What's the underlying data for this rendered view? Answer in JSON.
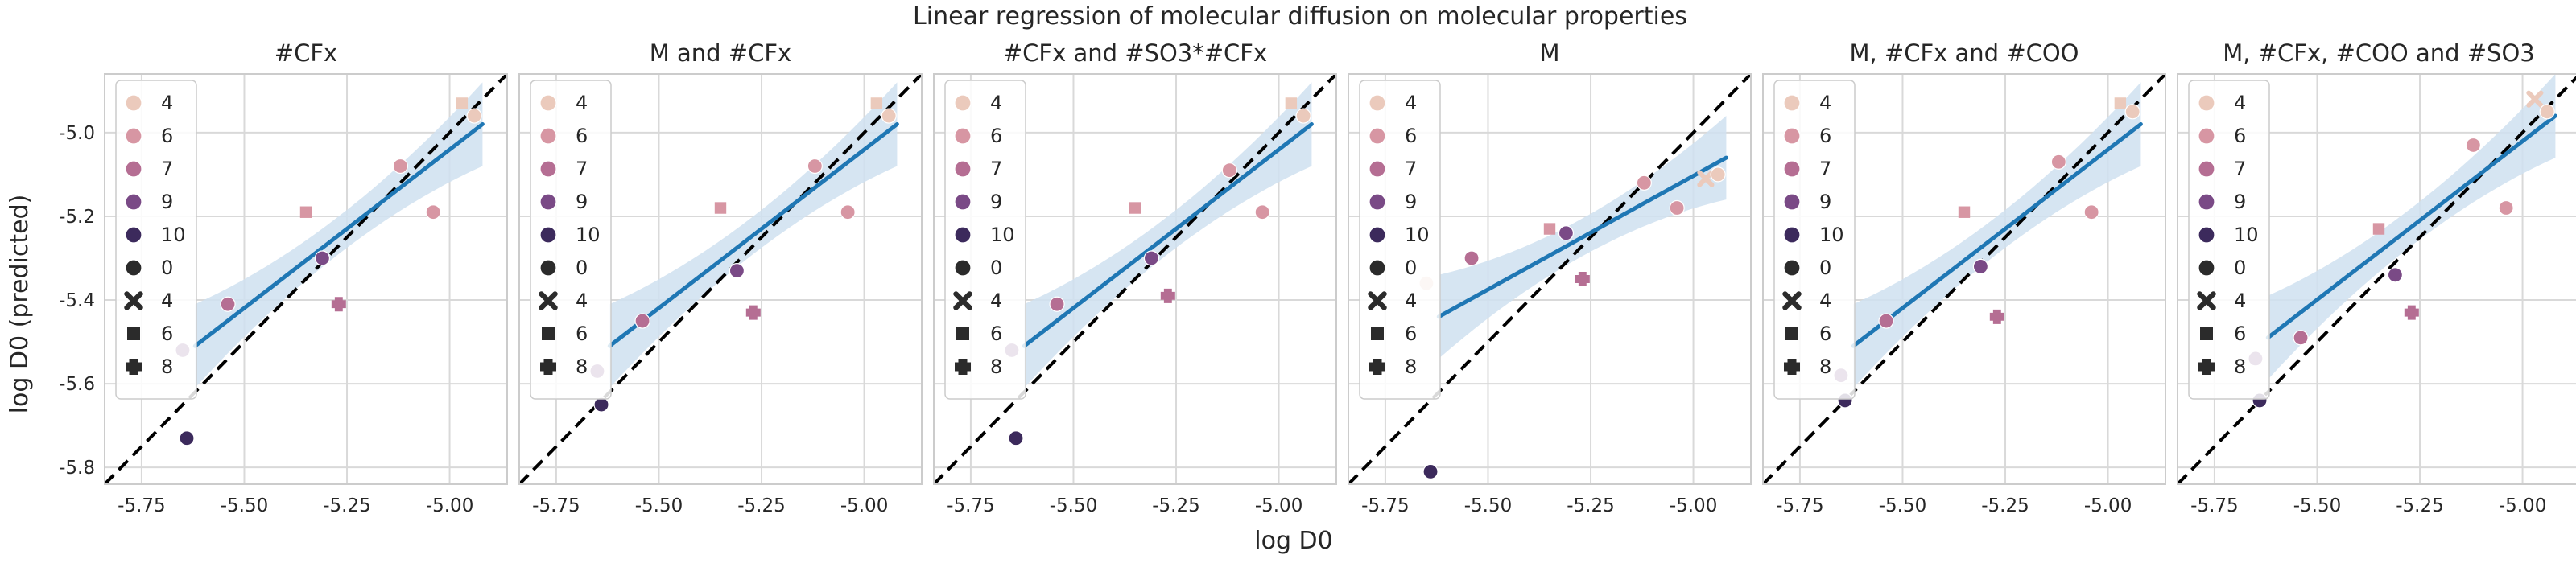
{
  "figure": {
    "title": "Linear regression of molecular diffusion on molecular properties",
    "xlabel": "log D0",
    "ylabel": "log D0 (predicted)"
  },
  "colors": {
    "hue": {
      "4": "#ebcabc",
      "6": "#d796a3",
      "7": "#b56e93",
      "9": "#7a4a86",
      "10": "#3c2a5c",
      "0": "#2b2b2b"
    },
    "regression": "#1f77b4",
    "ci_band": "#cfe0f0",
    "identity": "#000000",
    "grid": "#d9d9d9",
    "frame": "#cccccc"
  },
  "legend": {
    "hue_entries": [
      {
        "label": "4",
        "key": "4"
      },
      {
        "label": "6",
        "key": "6"
      },
      {
        "label": "7",
        "key": "7"
      },
      {
        "label": "9",
        "key": "9"
      },
      {
        "label": "10",
        "key": "10"
      }
    ],
    "style_entries": [
      {
        "label": "0",
        "marker": "circle"
      },
      {
        "label": "4",
        "marker": "x"
      },
      {
        "label": "6",
        "marker": "square"
      },
      {
        "label": "8",
        "marker": "plus"
      }
    ]
  },
  "chart_data": [
    {
      "type": "scatter",
      "title": "#CFx",
      "xlim": [
        -5.84,
        -4.86
      ],
      "ylim": [
        -5.84,
        -4.86
      ],
      "xticks": [
        "-5.75",
        "-5.50",
        "-5.25",
        "-5.00"
      ],
      "yticks": [
        "-5.0",
        "-5.2",
        "-5.4",
        "-5.6",
        "-5.8"
      ],
      "grid": true,
      "legend_position": "top-left",
      "regression": {
        "x": [
          -5.62,
          -4.92
        ],
        "y": [
          -5.51,
          -4.98
        ]
      },
      "points": [
        {
          "x": -5.64,
          "y": -5.73,
          "hue": "10",
          "marker": "circle"
        },
        {
          "x": -5.65,
          "y": -5.52,
          "hue": "9",
          "marker": "circle"
        },
        {
          "x": -5.54,
          "y": -5.41,
          "hue": "7",
          "marker": "circle"
        },
        {
          "x": -5.31,
          "y": -5.3,
          "hue": "9",
          "marker": "circle"
        },
        {
          "x": -5.35,
          "y": -5.19,
          "hue": "6",
          "marker": "square"
        },
        {
          "x": -5.27,
          "y": -5.41,
          "hue": "7",
          "marker": "plus"
        },
        {
          "x": -5.12,
          "y": -5.08,
          "hue": "6",
          "marker": "circle"
        },
        {
          "x": -5.04,
          "y": -5.19,
          "hue": "6",
          "marker": "circle"
        },
        {
          "x": -4.97,
          "y": -4.93,
          "hue": "4",
          "marker": "square"
        },
        {
          "x": -4.94,
          "y": -4.96,
          "hue": "4",
          "marker": "circle"
        }
      ]
    },
    {
      "type": "scatter",
      "title": "M and #CFx",
      "xlim": [
        -5.84,
        -4.86
      ],
      "ylim": [
        -5.84,
        -4.86
      ],
      "xticks": [
        "-5.75",
        "-5.50",
        "-5.25",
        "-5.00"
      ],
      "yticks": [
        "-5.0",
        "-5.2",
        "-5.4",
        "-5.6",
        "-5.8"
      ],
      "grid": true,
      "legend_position": "top-left",
      "regression": {
        "x": [
          -5.62,
          -4.92
        ],
        "y": [
          -5.51,
          -4.98
        ]
      },
      "points": [
        {
          "x": -5.64,
          "y": -5.65,
          "hue": "10",
          "marker": "circle"
        },
        {
          "x": -5.65,
          "y": -5.57,
          "hue": "9",
          "marker": "circle"
        },
        {
          "x": -5.54,
          "y": -5.45,
          "hue": "7",
          "marker": "circle"
        },
        {
          "x": -5.31,
          "y": -5.33,
          "hue": "9",
          "marker": "circle"
        },
        {
          "x": -5.35,
          "y": -5.18,
          "hue": "6",
          "marker": "square"
        },
        {
          "x": -5.27,
          "y": -5.43,
          "hue": "7",
          "marker": "plus"
        },
        {
          "x": -5.12,
          "y": -5.08,
          "hue": "6",
          "marker": "circle"
        },
        {
          "x": -5.04,
          "y": -5.19,
          "hue": "6",
          "marker": "circle"
        },
        {
          "x": -4.97,
          "y": -4.93,
          "hue": "4",
          "marker": "square"
        },
        {
          "x": -4.94,
          "y": -4.96,
          "hue": "4",
          "marker": "circle"
        }
      ]
    },
    {
      "type": "scatter",
      "title": "#CFx and #SO3*#CFx",
      "xlim": [
        -5.84,
        -4.86
      ],
      "ylim": [
        -5.84,
        -4.86
      ],
      "xticks": [
        "-5.75",
        "-5.50",
        "-5.25",
        "-5.00"
      ],
      "yticks": [
        "-5.0",
        "-5.2",
        "-5.4",
        "-5.6",
        "-5.8"
      ],
      "grid": true,
      "legend_position": "top-left",
      "regression": {
        "x": [
          -5.62,
          -4.92
        ],
        "y": [
          -5.51,
          -4.98
        ]
      },
      "points": [
        {
          "x": -5.64,
          "y": -5.73,
          "hue": "10",
          "marker": "circle"
        },
        {
          "x": -5.65,
          "y": -5.52,
          "hue": "9",
          "marker": "circle"
        },
        {
          "x": -5.54,
          "y": -5.41,
          "hue": "7",
          "marker": "circle"
        },
        {
          "x": -5.31,
          "y": -5.3,
          "hue": "9",
          "marker": "circle"
        },
        {
          "x": -5.35,
          "y": -5.18,
          "hue": "6",
          "marker": "square"
        },
        {
          "x": -5.27,
          "y": -5.39,
          "hue": "7",
          "marker": "plus"
        },
        {
          "x": -5.12,
          "y": -5.09,
          "hue": "6",
          "marker": "circle"
        },
        {
          "x": -5.04,
          "y": -5.19,
          "hue": "6",
          "marker": "circle"
        },
        {
          "x": -4.97,
          "y": -4.93,
          "hue": "4",
          "marker": "square"
        },
        {
          "x": -4.94,
          "y": -4.96,
          "hue": "4",
          "marker": "circle"
        }
      ]
    },
    {
      "type": "scatter",
      "title": "M",
      "xlim": [
        -5.84,
        -4.86
      ],
      "ylim": [
        -5.84,
        -4.86
      ],
      "xticks": [
        "-5.75",
        "-5.50",
        "-5.25",
        "-5.00"
      ],
      "yticks": [
        "-5.0",
        "-5.2",
        "-5.4",
        "-5.6",
        "-5.8"
      ],
      "grid": true,
      "legend_position": "top-left",
      "regression": {
        "x": [
          -5.62,
          -4.92
        ],
        "y": [
          -5.44,
          -5.06
        ]
      },
      "points": [
        {
          "x": -5.64,
          "y": -5.81,
          "hue": "10",
          "marker": "circle"
        },
        {
          "x": -5.65,
          "y": -5.36,
          "hue": "4",
          "marker": "circle"
        },
        {
          "x": -5.54,
          "y": -5.3,
          "hue": "7",
          "marker": "circle"
        },
        {
          "x": -5.31,
          "y": -5.24,
          "hue": "9",
          "marker": "circle"
        },
        {
          "x": -5.35,
          "y": -5.23,
          "hue": "6",
          "marker": "square"
        },
        {
          "x": -5.27,
          "y": -5.35,
          "hue": "7",
          "marker": "plus"
        },
        {
          "x": -5.12,
          "y": -5.12,
          "hue": "6",
          "marker": "circle"
        },
        {
          "x": -5.04,
          "y": -5.18,
          "hue": "6",
          "marker": "circle"
        },
        {
          "x": -4.97,
          "y": -5.11,
          "hue": "4",
          "marker": "x"
        },
        {
          "x": -4.94,
          "y": -5.1,
          "hue": "4",
          "marker": "circle"
        }
      ]
    },
    {
      "type": "scatter",
      "title": "M, #CFx and #COO",
      "xlim": [
        -5.84,
        -4.86
      ],
      "ylim": [
        -5.84,
        -4.86
      ],
      "xticks": [
        "-5.75",
        "-5.50",
        "-5.25",
        "-5.00"
      ],
      "yticks": [
        "-5.0",
        "-5.2",
        "-5.4",
        "-5.6",
        "-5.8"
      ],
      "grid": true,
      "legend_position": "top-left",
      "regression": {
        "x": [
          -5.62,
          -4.92
        ],
        "y": [
          -5.51,
          -4.98
        ]
      },
      "points": [
        {
          "x": -5.64,
          "y": -5.64,
          "hue": "10",
          "marker": "circle"
        },
        {
          "x": -5.65,
          "y": -5.58,
          "hue": "9",
          "marker": "circle"
        },
        {
          "x": -5.54,
          "y": -5.45,
          "hue": "7",
          "marker": "circle"
        },
        {
          "x": -5.31,
          "y": -5.32,
          "hue": "9",
          "marker": "circle"
        },
        {
          "x": -5.35,
          "y": -5.19,
          "hue": "6",
          "marker": "square"
        },
        {
          "x": -5.27,
          "y": -5.44,
          "hue": "7",
          "marker": "plus"
        },
        {
          "x": -5.12,
          "y": -5.07,
          "hue": "6",
          "marker": "circle"
        },
        {
          "x": -5.04,
          "y": -5.19,
          "hue": "6",
          "marker": "circle"
        },
        {
          "x": -4.97,
          "y": -4.93,
          "hue": "4",
          "marker": "square"
        },
        {
          "x": -4.94,
          "y": -4.95,
          "hue": "4",
          "marker": "circle"
        }
      ]
    },
    {
      "type": "scatter",
      "title": "M, #CFx, #COO and #SO3",
      "xlim": [
        -5.84,
        -4.86
      ],
      "ylim": [
        -5.84,
        -4.86
      ],
      "xticks": [
        "-5.75",
        "-5.50",
        "-5.25",
        "-5.00"
      ],
      "yticks": [
        "-5.0",
        "-5.2",
        "-5.4",
        "-5.6",
        "-5.8"
      ],
      "grid": true,
      "legend_position": "top-left",
      "regression": {
        "x": [
          -5.62,
          -4.92
        ],
        "y": [
          -5.49,
          -4.96
        ]
      },
      "points": [
        {
          "x": -5.64,
          "y": -5.64,
          "hue": "10",
          "marker": "circle"
        },
        {
          "x": -5.65,
          "y": -5.54,
          "hue": "9",
          "marker": "circle"
        },
        {
          "x": -5.54,
          "y": -5.49,
          "hue": "7",
          "marker": "circle"
        },
        {
          "x": -5.31,
          "y": -5.34,
          "hue": "9",
          "marker": "circle"
        },
        {
          "x": -5.35,
          "y": -5.23,
          "hue": "6",
          "marker": "square"
        },
        {
          "x": -5.27,
          "y": -5.43,
          "hue": "7",
          "marker": "plus"
        },
        {
          "x": -5.12,
          "y": -5.03,
          "hue": "6",
          "marker": "circle"
        },
        {
          "x": -5.04,
          "y": -5.18,
          "hue": "6",
          "marker": "circle"
        },
        {
          "x": -4.97,
          "y": -4.92,
          "hue": "4",
          "marker": "x"
        },
        {
          "x": -4.94,
          "y": -4.95,
          "hue": "4",
          "marker": "circle"
        }
      ]
    }
  ]
}
